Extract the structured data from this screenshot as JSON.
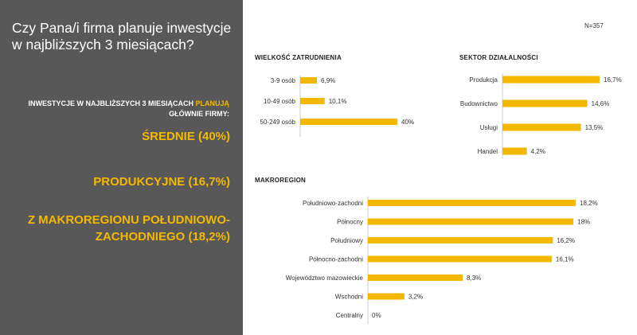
{
  "left_panel": {
    "title": "Czy Pana/i firma planuje inwestycje w najbliższych 3 miesiącach?",
    "intro_part1": "INWESTYCJE W NAJBLIŻSZYCH 3 MIESIĄCACH ",
    "intro_highlight": "PLANUJĄ",
    "intro_part2": " GŁÓWNIE FIRMY:",
    "findings": [
      "ŚREDNIE (40%)",
      "PRODUKCYJNE (16,7%)",
      "Z MAKROREGIONU POŁUDNIOWO-ZACHODNIEGO (18,2%)"
    ]
  },
  "sample_size": "N=357",
  "colors": {
    "bar": "#F5B800",
    "left_panel": "#585858",
    "axis": "#cccccc"
  },
  "chart_data": [
    {
      "type": "bar",
      "orientation": "horizontal",
      "title": "WIELKOŚĆ ZATRUDNIENIA",
      "categories": [
        "3-9 osób",
        "10-49 osób",
        "50-249 osób"
      ],
      "values": [
        6.9,
        10.1,
        40
      ],
      "labels": [
        "6,9%",
        "10,1%",
        "40%"
      ],
      "xlim": [
        0,
        40
      ]
    },
    {
      "type": "bar",
      "orientation": "horizontal",
      "title": "SEKTOR DZIAŁALNOŚCI",
      "categories": [
        "Produkcja",
        "Budownictwo",
        "Usługi",
        "Handel"
      ],
      "values": [
        16.7,
        14.6,
        13.5,
        4.2
      ],
      "labels": [
        "16,7%",
        "14,6%",
        "13,5%",
        "4,2%"
      ],
      "xlim": [
        0,
        16.7
      ]
    },
    {
      "type": "bar",
      "orientation": "horizontal",
      "title": "MAKROREGION",
      "categories": [
        "Południowo-zachodni",
        "Północny",
        "Południowy",
        "Północno-zachodni",
        "Województwo mazowieckie",
        "Wschodni",
        "Centralny"
      ],
      "values": [
        18.2,
        18,
        16.2,
        16.1,
        8.3,
        3.2,
        0
      ],
      "labels": [
        "18,2%",
        "18%",
        "16,2%",
        "16,1%",
        "8,3%",
        "3,2%",
        "0%"
      ],
      "xlim": [
        0,
        18.2
      ]
    }
  ]
}
